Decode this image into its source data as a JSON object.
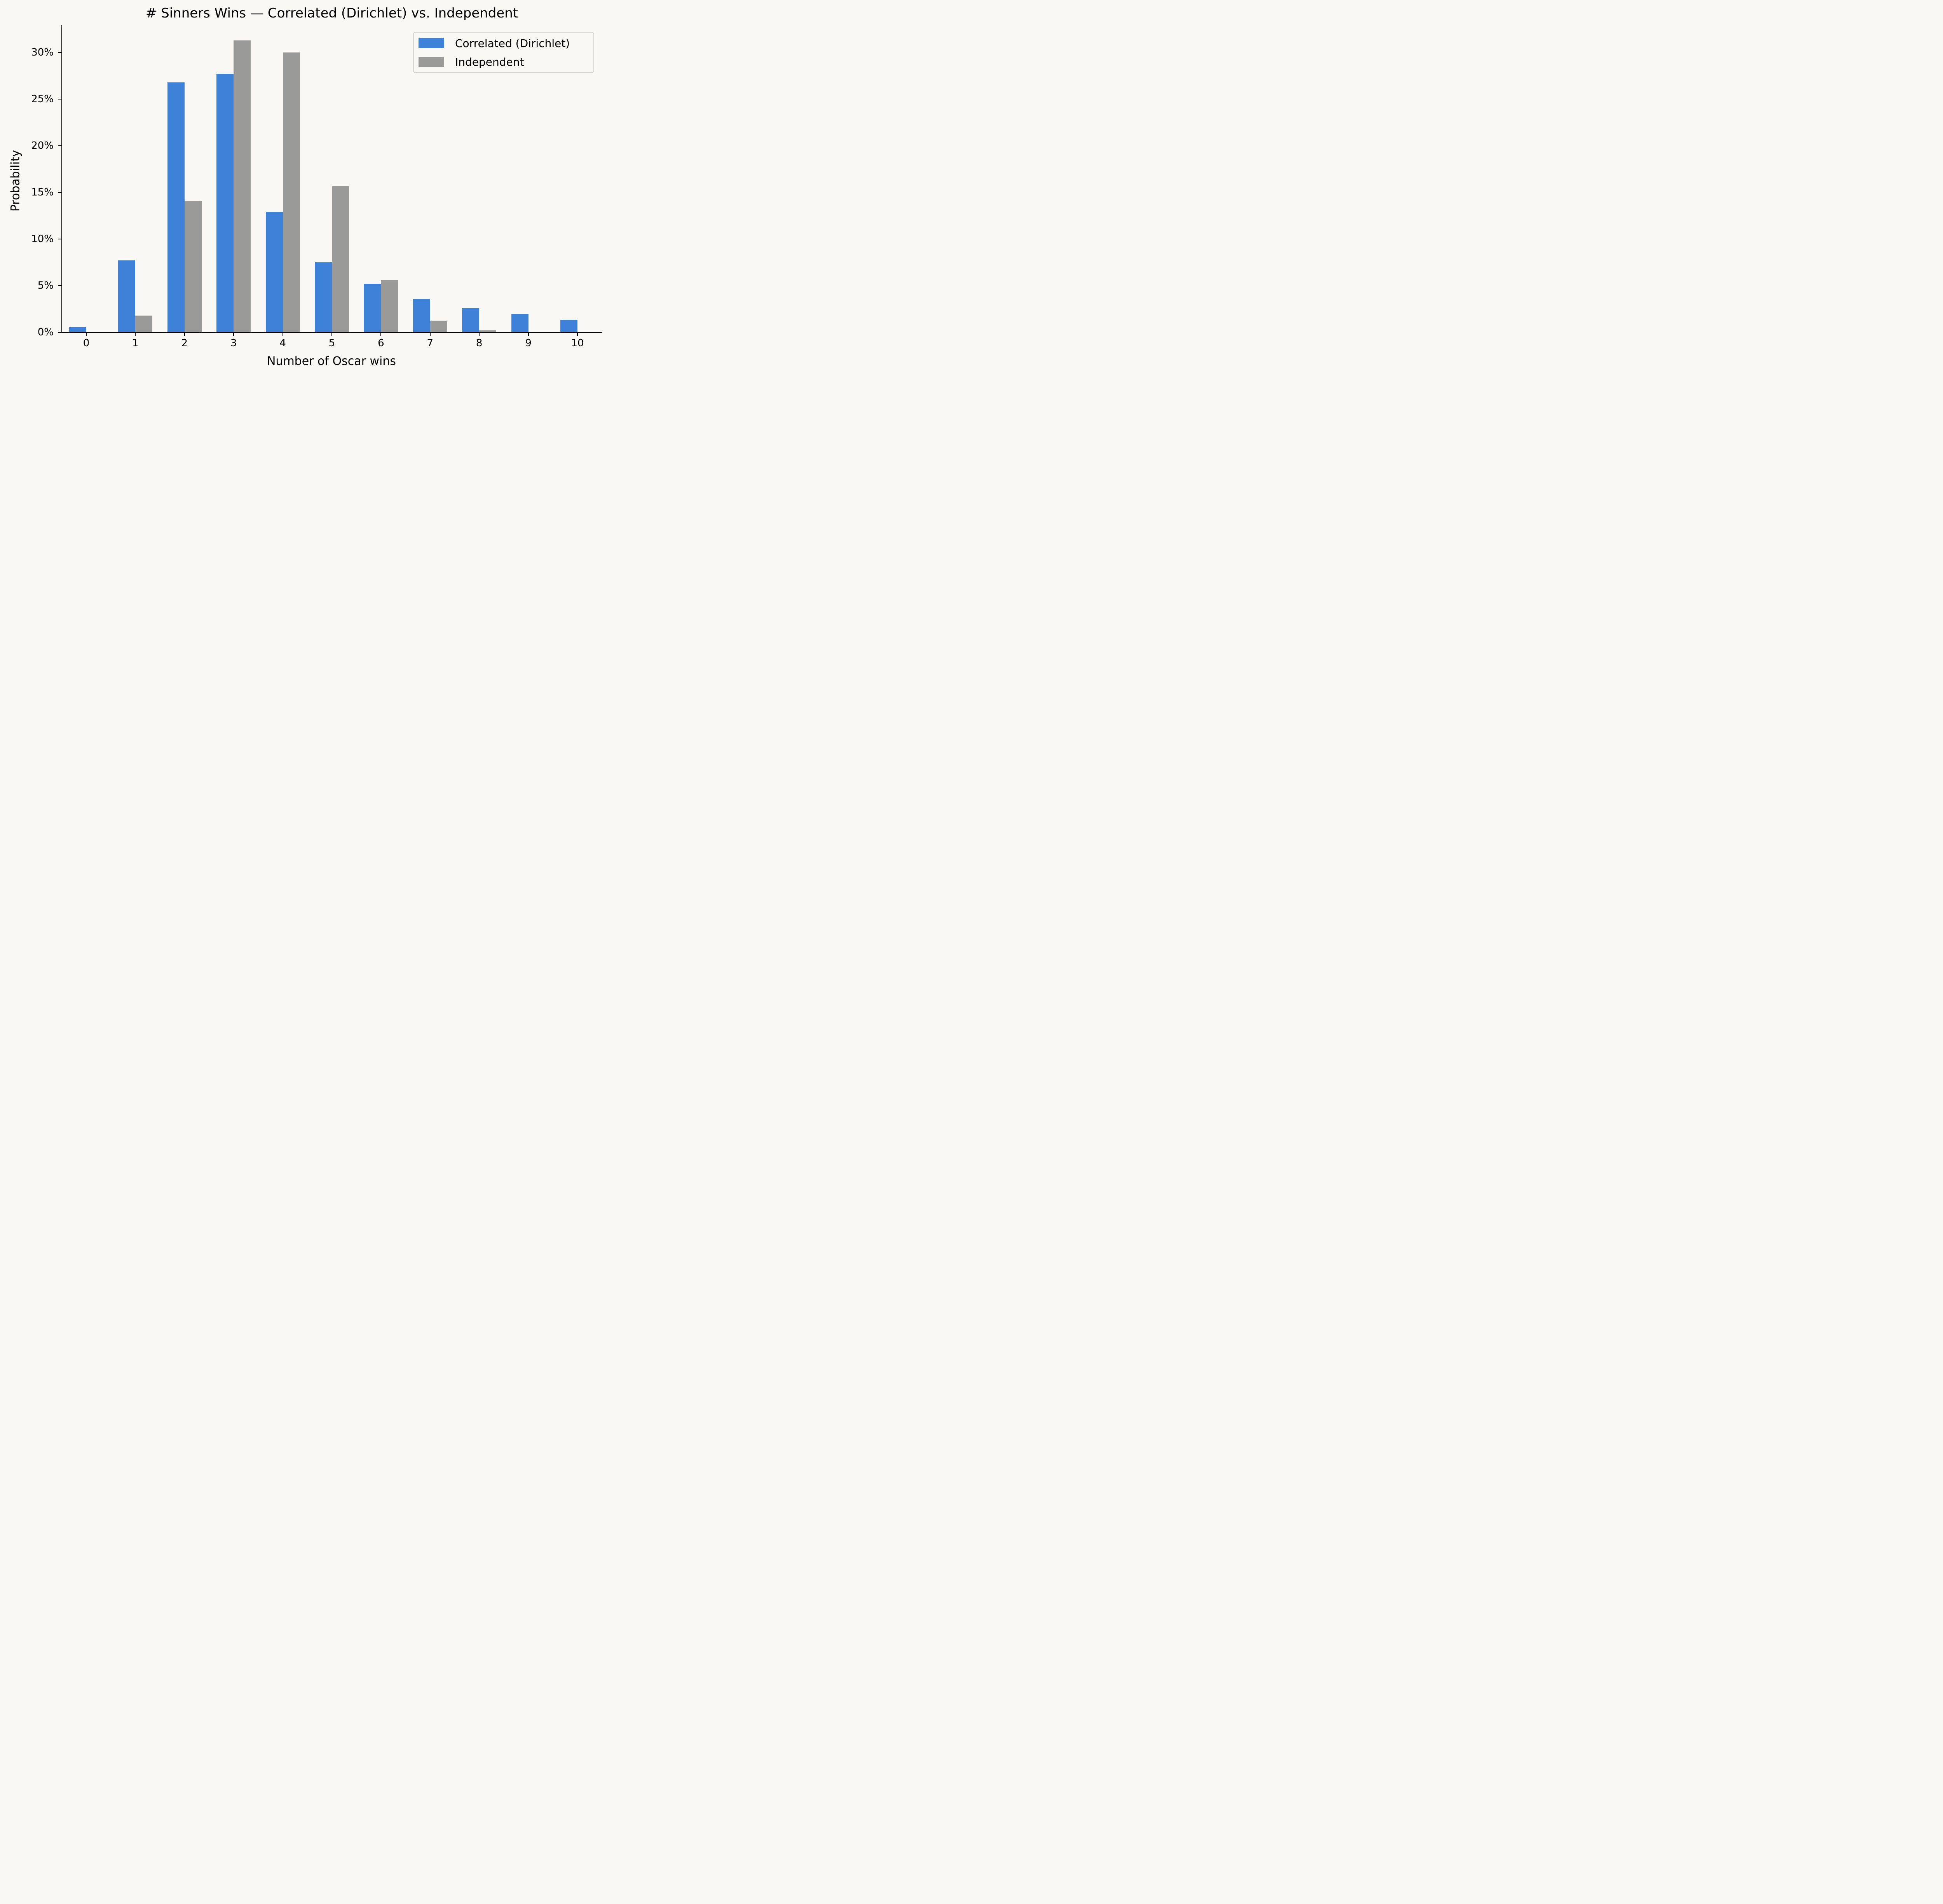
{
  "chart_data": {
    "type": "bar",
    "title": "# Sinners Wins — Correlated (Dirichlet) vs. Independent",
    "xlabel": "Number of Oscar wins",
    "ylabel": "Probability",
    "categories": [
      "0",
      "1",
      "2",
      "3",
      "4",
      "5",
      "6",
      "7",
      "8",
      "9",
      "10"
    ],
    "series": [
      {
        "name": "Correlated (Dirichlet)",
        "color": "#3d82d8",
        "values": [
          0.55,
          7.7,
          26.8,
          27.7,
          12.9,
          7.5,
          5.2,
          3.6,
          2.6,
          1.95,
          1.35
        ]
      },
      {
        "name": "Independent",
        "color": "#9a9a98",
        "values": [
          0.0,
          1.8,
          14.1,
          31.3,
          30.0,
          15.7,
          5.6,
          1.25,
          0.2,
          0.0,
          0.0
        ]
      }
    ],
    "value_unit": "%",
    "ylim": [
      0,
      32.8
    ],
    "yticks": [
      "0%",
      "5%",
      "10%",
      "15%",
      "20%",
      "25%",
      "30%"
    ],
    "ytick_values": [
      0,
      5,
      10,
      15,
      20,
      25,
      30
    ],
    "grid": false,
    "legend_position": "upper right"
  }
}
